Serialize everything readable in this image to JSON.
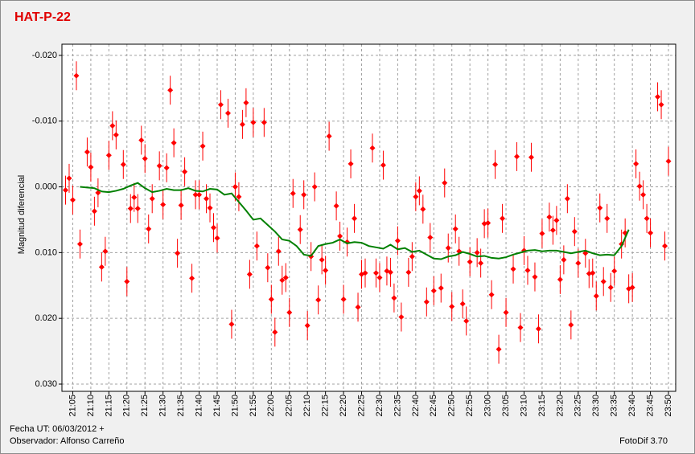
{
  "chart_data": {
    "type": "scatter",
    "title": "HAT-P-22",
    "ylabel": "Magnitud diferencial",
    "xlim": [
      "21:02",
      "23:52"
    ],
    "xticks": [
      "21:05",
      "21:10",
      "21:15",
      "21:20",
      "21:25",
      "21:30",
      "21:35",
      "21:40",
      "21:45",
      "21:50",
      "21:55",
      "22:00",
      "22:05",
      "22:10",
      "22:15",
      "22:20",
      "22:25",
      "22:30",
      "22:35",
      "22:40",
      "22:45",
      "22:50",
      "22:55",
      "23:00",
      "23:05",
      "23:10",
      "23:15",
      "23:20",
      "23:25",
      "23:30",
      "23:35",
      "23:40",
      "23:45",
      "23:50"
    ],
    "ylim": [
      0.0311,
      -0.0217
    ],
    "yticks": [
      {
        "value": -0.02,
        "label": "-0.020"
      },
      {
        "value": -0.01,
        "label": "-0.010"
      },
      {
        "value": 0,
        "label": "0.000"
      },
      {
        "value": 0.01,
        "label": "0.010"
      },
      {
        "value": 0.02,
        "label": "0.020"
      },
      {
        "value": 0.03,
        "label": "0.030"
      }
    ],
    "grid": true,
    "series": [
      {
        "type": "scatter",
        "color": "#ff0000",
        "x": [
          "21:03",
          "21:04",
          "21:05",
          "21:06",
          "21:07",
          "21:09",
          "21:10",
          "21:11",
          "21:12",
          "21:13",
          "21:14",
          "21:15",
          "21:16",
          "21:17",
          "21:19",
          "21:20",
          "21:21",
          "21:22",
          "21:23",
          "21:24",
          "21:25",
          "21:26",
          "21:27",
          "21:29",
          "21:30",
          "21:31",
          "21:32",
          "21:33",
          "21:34",
          "21:35",
          "21:36",
          "21:38",
          "21:39",
          "21:40",
          "21:41",
          "21:42",
          "21:43",
          "21:44",
          "21:45",
          "21:46",
          "21:48",
          "21:49",
          "21:50",
          "21:51",
          "21:52",
          "21:53",
          "21:54",
          "21:55",
          "21:56",
          "21:58",
          "21:59",
          "22:00",
          "22:01",
          "22:02",
          "22:03",
          "22:04",
          "22:05",
          "22:06",
          "22:08",
          "22:09",
          "22:10",
          "22:11",
          "22:12",
          "22:13",
          "22:14",
          "22:15",
          "22:16",
          "22:18",
          "22:19",
          "22:20",
          "22:21",
          "22:22",
          "22:23",
          "22:24",
          "22:25",
          "22:26",
          "22:28",
          "22:29",
          "22:30",
          "22:31",
          "22:32",
          "22:33",
          "22:34",
          "22:35",
          "22:36",
          "22:38",
          "22:39",
          "22:40",
          "22:41",
          "22:42",
          "22:43",
          "22:44",
          "22:45",
          "22:47",
          "22:48",
          "22:49",
          "22:50",
          "22:51",
          "22:52",
          "22:53",
          "22:54",
          "22:55",
          "22:57",
          "22:58",
          "22:59",
          "23:00",
          "23:01",
          "23:02",
          "23:03",
          "23:04",
          "23:05",
          "23:07",
          "23:08",
          "23:09",
          "23:10",
          "23:11",
          "23:12",
          "23:13",
          "23:14",
          "23:15",
          "23:17",
          "23:18",
          "23:19",
          "23:20",
          "23:21",
          "23:22",
          "23:23",
          "23:24",
          "23:25",
          "23:27",
          "23:28",
          "23:29",
          "23:30",
          "23:31",
          "23:32",
          "23:33",
          "23:34",
          "23:35",
          "23:37",
          "23:38",
          "23:39",
          "23:40",
          "23:41",
          "23:42",
          "23:43",
          "23:44",
          "23:45",
          "23:47",
          "23:48",
          "23:49",
          "23:50"
        ],
        "values": [
          0.0005,
          -0.0013,
          0.002,
          -0.0169,
          0.0087,
          -0.0053,
          -0.003,
          0.0037,
          0.0009,
          0.0122,
          0.0098,
          -0.0048,
          -0.0093,
          -0.0079,
          -0.0034,
          0.0144,
          0.0033,
          0.0016,
          0.0033,
          -0.0071,
          -0.0043,
          0.0064,
          0.0018,
          -0.0032,
          0.0027,
          -0.0029,
          -0.0147,
          -0.0067,
          0.0101,
          0.0028,
          -0.0023,
          0.0139,
          0.0012,
          0.0012,
          -0.0062,
          0.0018,
          0.0032,
          0.0062,
          0.0078,
          -0.0125,
          -0.0112,
          0.0209,
          0.0,
          0.0015,
          -0.0095,
          -0.0128,
          0.0133,
          -0.0098,
          0.009,
          -0.0098,
          0.0123,
          0.0171,
          0.0221,
          0.0098,
          0.0142,
          0.0138,
          0.0191,
          0.001,
          0.0065,
          0.0012,
          0.0211,
          0.0106,
          0.0,
          0.0172,
          0.0111,
          0.0127,
          -0.0077,
          0.0029,
          0.0075,
          0.0171,
          0.0084,
          -0.0035,
          0.0048,
          0.0183,
          0.0133,
          0.0131,
          -0.0059,
          0.0131,
          0.0138,
          -0.0033,
          0.0128,
          0.013,
          0.0169,
          0.0082,
          0.0198,
          0.013,
          0.0106,
          0.0015,
          0.0006,
          0.0034,
          0.0175,
          0.0077,
          0.0158,
          0.0154,
          -0.0006,
          0.0093,
          0.0182,
          0.0064,
          0.0098,
          0.0178,
          0.0204,
          0.0114,
          0.01,
          0.0116,
          0.0056,
          0.0055,
          0.0164,
          -0.0034,
          0.0247,
          0.0048,
          0.0191,
          0.0125,
          -0.0046,
          0.0214,
          0.0097,
          0.0127,
          -0.0045,
          0.0137,
          0.0216,
          0.0071,
          0.0046,
          0.0066,
          0.0051,
          0.0141,
          0.0111,
          0.0018,
          0.021,
          0.0068,
          0.0116,
          0.0101,
          0.0132,
          0.0131,
          0.0166,
          0.0032,
          0.0144,
          0.0048,
          0.0153,
          0.0128,
          0.0087,
          0.007,
          0.0155,
          0.0153,
          -0.0035,
          -0.0001,
          0.0012,
          0.0048,
          0.007,
          -0.0137,
          -0.0125,
          0.009,
          -0.0039
        ],
        "errors": [
          0.0022,
          0.0022,
          0.0022,
          0.0022,
          0.0022,
          0.0022,
          0.0022,
          0.0022,
          0.0022,
          0.0022,
          0.0022,
          0.0022,
          0.0022,
          0.0022,
          0.0022,
          0.0022,
          0.0022,
          0.0022,
          0.0022,
          0.0022,
          0.0022,
          0.0022,
          0.0022,
          0.0022,
          0.0022,
          0.0022,
          0.0022,
          0.0022,
          0.0022,
          0.0022,
          0.0022,
          0.0022,
          0.0022,
          0.0022,
          0.0022,
          0.0022,
          0.0022,
          0.0022,
          0.0022,
          0.0022,
          0.0022,
          0.0022,
          0.0022,
          0.0022,
          0.0022,
          0.0022,
          0.0022,
          0.0022,
          0.0022,
          0.0022,
          0.0022,
          0.0022,
          0.0022,
          0.0022,
          0.0022,
          0.0022,
          0.0022,
          0.0022,
          0.0022,
          0.0022,
          0.0022,
          0.0022,
          0.0022,
          0.0022,
          0.0022,
          0.0022,
          0.0022,
          0.0022,
          0.0022,
          0.0022,
          0.0022,
          0.0022,
          0.0022,
          0.0022,
          0.0022,
          0.0022,
          0.0022,
          0.0022,
          0.0022,
          0.0022,
          0.0022,
          0.0022,
          0.0022,
          0.0022,
          0.0022,
          0.0022,
          0.0022,
          0.0022,
          0.0022,
          0.0022,
          0.0022,
          0.0022,
          0.0022,
          0.0022,
          0.0022,
          0.0022,
          0.0022,
          0.0022,
          0.0022,
          0.0022,
          0.0022,
          0.0022,
          0.0022,
          0.0022,
          0.0022,
          0.0022,
          0.0022,
          0.0022,
          0.0022,
          0.0022,
          0.0022,
          0.0022,
          0.0022,
          0.0022,
          0.0022,
          0.0022,
          0.0022,
          0.0022,
          0.0022,
          0.0022,
          0.0022,
          0.0022,
          0.0022,
          0.0022,
          0.0022,
          0.0022,
          0.0022,
          0.0022,
          0.0022,
          0.0022,
          0.0022,
          0.0022,
          0.0022,
          0.0022,
          0.0022,
          0.0022,
          0.0022,
          0.0022,
          0.0022,
          0.0022,
          0.0022,
          0.0022,
          0.0022,
          0.0022,
          0.0022,
          0.0022,
          0.0022,
          0.0022,
          0.0022,
          0.0022,
          0.0022
        ]
      },
      {
        "type": "line",
        "color": "#008000",
        "x": [
          "21:07",
          "21:09",
          "21:11",
          "21:13",
          "21:15",
          "21:17",
          "21:19",
          "21:21",
          "21:23",
          "21:25",
          "21:27",
          "21:29",
          "21:31",
          "21:33",
          "21:35",
          "21:37",
          "21:39",
          "21:41",
          "21:43",
          "21:45",
          "21:47",
          "21:49",
          "21:51",
          "21:53",
          "21:55",
          "21:57",
          "21:59",
          "22:01",
          "22:03",
          "22:05",
          "22:07",
          "22:09",
          "22:11",
          "22:13",
          "22:15",
          "22:17",
          "22:19",
          "22:21",
          "22:23",
          "22:25",
          "22:27",
          "22:29",
          "22:31",
          "22:33",
          "22:35",
          "22:37",
          "22:39",
          "22:41",
          "22:43",
          "22:45",
          "22:47",
          "22:49",
          "22:51",
          "22:53",
          "22:55",
          "22:57",
          "22:59",
          "23:01",
          "23:03",
          "23:05",
          "23:07",
          "23:09",
          "23:11",
          "23:13",
          "23:15",
          "23:17",
          "23:19",
          "23:21",
          "23:23",
          "23:25",
          "23:27",
          "23:29",
          "23:31",
          "23:33",
          "23:35",
          "23:37",
          "23:39"
        ],
        "values": [
          0.0,
          0.0001,
          0.0002,
          0.0007,
          0.0008,
          0.0006,
          0.0003,
          -0.0002,
          -0.0006,
          0.0002,
          0.0008,
          0.0006,
          0.0003,
          0.0005,
          0.0005,
          0.0002,
          0.0006,
          0.0007,
          0.0003,
          0.0004,
          0.0012,
          0.001,
          0.0023,
          0.0036,
          0.005,
          0.0048,
          0.0058,
          0.0068,
          0.008,
          0.0082,
          0.009,
          0.0103,
          0.0105,
          0.009,
          0.0087,
          0.0085,
          0.008,
          0.0086,
          0.0084,
          0.0085,
          0.009,
          0.0092,
          0.0094,
          0.0088,
          0.0095,
          0.0093,
          0.0099,
          0.0097,
          0.0103,
          0.0109,
          0.011,
          0.0106,
          0.0104,
          0.0099,
          0.0102,
          0.0106,
          0.0105,
          0.0108,
          0.0109,
          0.0107,
          0.0103,
          0.01,
          0.0097,
          0.0096,
          0.0098,
          0.0097,
          0.0097,
          0.0099,
          0.0101,
          0.0099,
          0.0097,
          0.0101,
          0.0104,
          0.0103,
          0.0104,
          0.009,
          0.0065
        ]
      }
    ]
  },
  "footer": {
    "date": "Fecha UT: 06/03/2012 +",
    "observer": "Observador: Alfonso Carreño",
    "software": "FotoDif 3.70"
  }
}
